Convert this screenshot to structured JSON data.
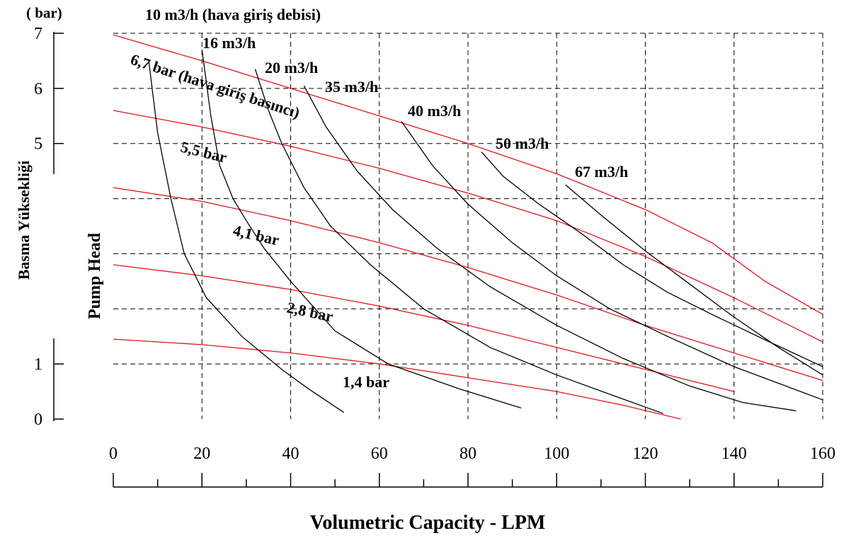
{
  "chart_data": {
    "type": "line",
    "unit_label": "( bar)",
    "ylabel_outer": "Basma Yüksekliği",
    "ylabel_inner": "Pump Head",
    "xlabel": "Volumetric Capacity - LPM",
    "xlim": [
      0,
      160
    ],
    "ylim": [
      0,
      7
    ],
    "x_ticks": [
      "0",
      "20",
      "40",
      "60",
      "80",
      "100",
      "120",
      "140",
      "160"
    ],
    "y_ticks": [
      "0",
      "1",
      "",
      "",
      "",
      "5",
      "6",
      "7"
    ],
    "grid": true,
    "pressure_series": [
      {
        "name": "6,7 bar (hava giriş basıncı)",
        "points": [
          [
            0,
            6.97
          ],
          [
            20,
            6.5
          ],
          [
            40,
            6.0
          ],
          [
            60,
            5.5
          ],
          [
            80,
            5.0
          ],
          [
            100,
            4.45
          ],
          [
            120,
            3.8
          ],
          [
            135,
            3.2
          ],
          [
            147,
            2.5
          ],
          [
            160,
            1.9
          ]
        ]
      },
      {
        "name": "5,5 bar",
        "points": [
          [
            0,
            5.6
          ],
          [
            20,
            5.3
          ],
          [
            40,
            4.95
          ],
          [
            60,
            4.55
          ],
          [
            80,
            4.1
          ],
          [
            100,
            3.6
          ],
          [
            120,
            2.95
          ],
          [
            140,
            2.2
          ],
          [
            160,
            1.4
          ]
        ]
      },
      {
        "name": "4,1 bar",
        "points": [
          [
            0,
            4.2
          ],
          [
            20,
            3.95
          ],
          [
            40,
            3.6
          ],
          [
            60,
            3.2
          ],
          [
            80,
            2.75
          ],
          [
            100,
            2.25
          ],
          [
            120,
            1.7
          ],
          [
            140,
            1.2
          ],
          [
            160,
            0.7
          ]
        ]
      },
      {
        "name": "2,8 bar",
        "points": [
          [
            0,
            2.8
          ],
          [
            20,
            2.6
          ],
          [
            40,
            2.35
          ],
          [
            60,
            2.05
          ],
          [
            80,
            1.7
          ],
          [
            100,
            1.3
          ],
          [
            120,
            0.9
          ],
          [
            140,
            0.5
          ]
        ]
      },
      {
        "name": "1,4 bar",
        "points": [
          [
            0,
            1.45
          ],
          [
            20,
            1.35
          ],
          [
            40,
            1.2
          ],
          [
            60,
            1.0
          ],
          [
            80,
            0.75
          ],
          [
            100,
            0.5
          ],
          [
            115,
            0.25
          ],
          [
            128,
            0.0
          ]
        ]
      }
    ],
    "air_flow_series": [
      {
        "name": "10 m3/h (hava giriş debisi)",
        "points": [
          [
            8,
            6.5
          ],
          [
            10,
            5.2
          ],
          [
            13,
            4.0
          ],
          [
            16,
            3.0
          ],
          [
            21,
            2.2
          ],
          [
            29,
            1.5
          ],
          [
            38,
            0.9
          ],
          [
            44,
            0.55
          ],
          [
            52,
            0.12
          ]
        ]
      },
      {
        "name": "16 m3/h",
        "points": [
          [
            20,
            6.7
          ],
          [
            22,
            5.5
          ],
          [
            24,
            4.6
          ],
          [
            27,
            4.0
          ],
          [
            30,
            3.6
          ],
          [
            34,
            3.1
          ],
          [
            40,
            2.5
          ],
          [
            50,
            1.6
          ],
          [
            62,
            1.0
          ],
          [
            78,
            0.55
          ],
          [
            92,
            0.2
          ]
        ]
      },
      {
        "name": "20 m3/h",
        "points": [
          [
            32,
            6.35
          ],
          [
            35,
            5.6
          ],
          [
            38,
            5.0
          ],
          [
            43,
            4.2
          ],
          [
            49,
            3.5
          ],
          [
            58,
            2.8
          ],
          [
            70,
            2.0
          ],
          [
            85,
            1.3
          ],
          [
            100,
            0.8
          ],
          [
            112,
            0.45
          ],
          [
            124,
            0.1
          ]
        ]
      },
      {
        "name": "35 m3/h",
        "points": [
          [
            43,
            6.05
          ],
          [
            48,
            5.3
          ],
          [
            55,
            4.5
          ],
          [
            63,
            3.8
          ],
          [
            73,
            3.1
          ],
          [
            85,
            2.4
          ],
          [
            100,
            1.7
          ],
          [
            115,
            1.1
          ],
          [
            130,
            0.6
          ],
          [
            142,
            0.3
          ],
          [
            154,
            0.15
          ]
        ]
      },
      {
        "name": "40 m3/h",
        "points": [
          [
            65,
            5.4
          ],
          [
            72,
            4.6
          ],
          [
            80,
            3.9
          ],
          [
            90,
            3.2
          ],
          [
            100,
            2.6
          ],
          [
            112,
            2.0
          ],
          [
            125,
            1.5
          ],
          [
            140,
            0.95
          ],
          [
            150,
            0.65
          ],
          [
            160,
            0.35
          ]
        ]
      },
      {
        "name": "50 m3/h",
        "points": [
          [
            83,
            4.85
          ],
          [
            88,
            4.4
          ],
          [
            96,
            3.9
          ],
          [
            105,
            3.4
          ],
          [
            115,
            2.8
          ],
          [
            125,
            2.3
          ],
          [
            135,
            1.9
          ],
          [
            148,
            1.4
          ],
          [
            160,
            0.95
          ]
        ]
      },
      {
        "name": "67 m3/h",
        "points": [
          [
            102,
            4.25
          ],
          [
            110,
            3.7
          ],
          [
            120,
            3.05
          ],
          [
            130,
            2.45
          ],
          [
            140,
            1.85
          ],
          [
            150,
            1.3
          ],
          [
            160,
            0.8
          ]
        ]
      }
    ]
  }
}
